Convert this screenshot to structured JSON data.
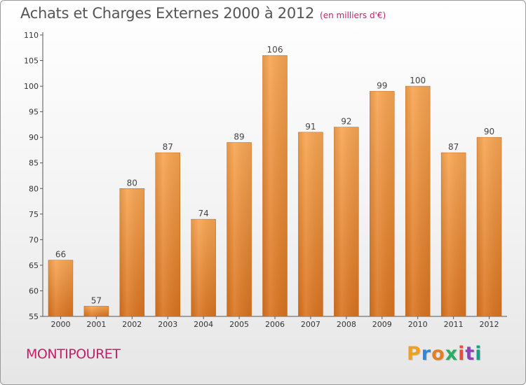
{
  "chart_data": {
    "type": "bar",
    "title": "Achats et Charges Externes 2000 à 2012",
    "subtitle": "(en milliers d'€)",
    "categories": [
      "2000",
      "2001",
      "2002",
      "2003",
      "2004",
      "2005",
      "2006",
      "2007",
      "2008",
      "2009",
      "2010",
      "2011",
      "2012"
    ],
    "values": [
      66,
      57,
      80,
      87,
      74,
      89,
      106,
      91,
      92,
      99,
      100,
      87,
      90
    ],
    "ylim": [
      55,
      110
    ],
    "yticks": [
      55,
      60,
      65,
      70,
      75,
      80,
      85,
      90,
      95,
      100,
      105,
      110
    ],
    "grid": false,
    "bar_color_top": "#f7a552",
    "bar_color_bottom": "#d9731f"
  },
  "footer": {
    "commune": "MONTIPOURET"
  },
  "logo": {
    "letters": [
      "P",
      "r",
      "o",
      "x",
      "i",
      "t",
      "i"
    ],
    "colors": [
      "#f0a020",
      "#2e86de",
      "#e67e22",
      "#27ae60",
      "#e74c3c",
      "#8e44ad",
      "#16a085"
    ]
  }
}
